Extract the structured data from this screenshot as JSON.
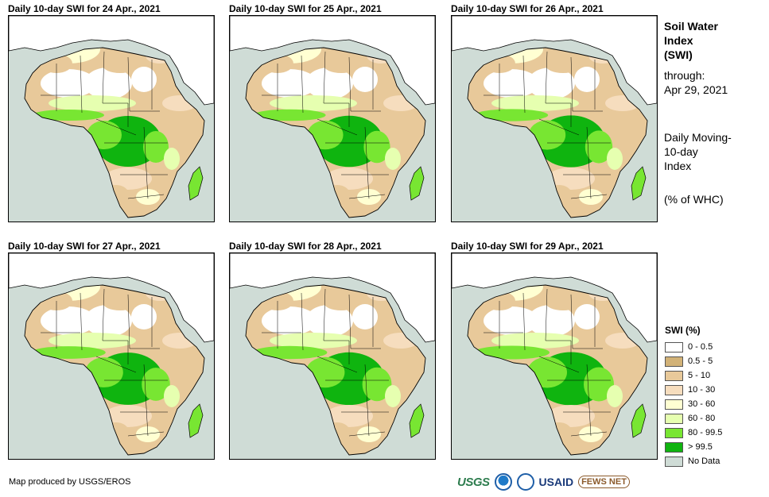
{
  "panels": [
    {
      "title": "Daily 10-day  SWI for 24 Apr., 2021"
    },
    {
      "title": "Daily 10-day  SWI for 25 Apr., 2021"
    },
    {
      "title": "Daily 10-day  SWI for 26 Apr., 2021"
    },
    {
      "title": "Daily 10-day  SWI for 27 Apr., 2021"
    },
    {
      "title": "Daily 10-day  SWI for 28 Apr., 2021"
    },
    {
      "title": "Daily 10-day  SWI for 29 Apr., 2021"
    }
  ],
  "sidebar": {
    "title_lines": [
      "Soil Water",
      "Index",
      "(SWI)"
    ],
    "through_label": "through:",
    "through_date": "Apr 29, 2021",
    "index_lines": [
      "Daily Moving-",
      "10-day",
      "Index"
    ],
    "unit": "(% of WHC)"
  },
  "legend": {
    "title": "SWI (%)",
    "items": [
      {
        "label": "0 - 0.5",
        "color": "#ffffff"
      },
      {
        "label": "0.5 - 5",
        "color": "#d2b277"
      },
      {
        "label": "5 - 10",
        "color": "#e8c99a"
      },
      {
        "label": "10 - 30",
        "color": "#f6ddbe"
      },
      {
        "label": "30 - 60",
        "color": "#ffffd2"
      },
      {
        "label": "60 - 80",
        "color": "#e6ffb0"
      },
      {
        "label": "80 - 99.5",
        "color": "#78e632"
      },
      {
        "label": "> 99.5",
        "color": "#0fb40f"
      },
      {
        "label": "No Data",
        "color": "#cfdcd6"
      }
    ]
  },
  "credit": "Map produced by USGS/EROS",
  "logos": {
    "usgs": "USGS",
    "usaid": "USAID",
    "fews": "FEWS NET"
  }
}
